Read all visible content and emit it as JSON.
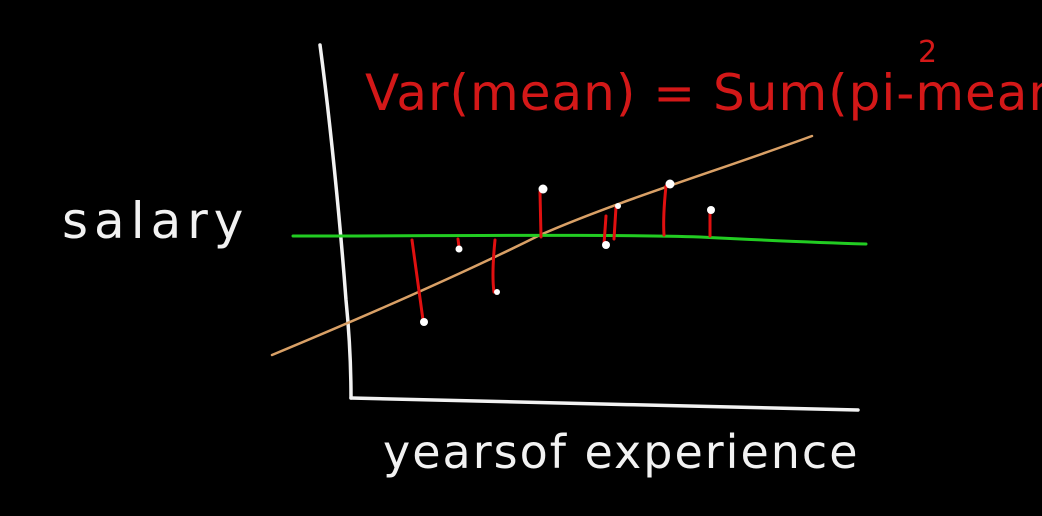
{
  "formula": {
    "text": "Var(mean) = Sum(pi-mean)",
    "exponent": "2"
  },
  "axes": {
    "ylabel": "salary",
    "xlabel": "yearsof experience"
  },
  "colors": {
    "background": "#000000",
    "axis": "#f2f2f2",
    "formula": "#d31818",
    "mean_line": "#22cc22",
    "fit_line": "#d9a066",
    "residual": "#e01010",
    "point": "#ffffff"
  },
  "lines": {
    "mean": "horizontal mean line (green)",
    "fit": "ascending fitted line (tan)"
  },
  "points_count": 8
}
